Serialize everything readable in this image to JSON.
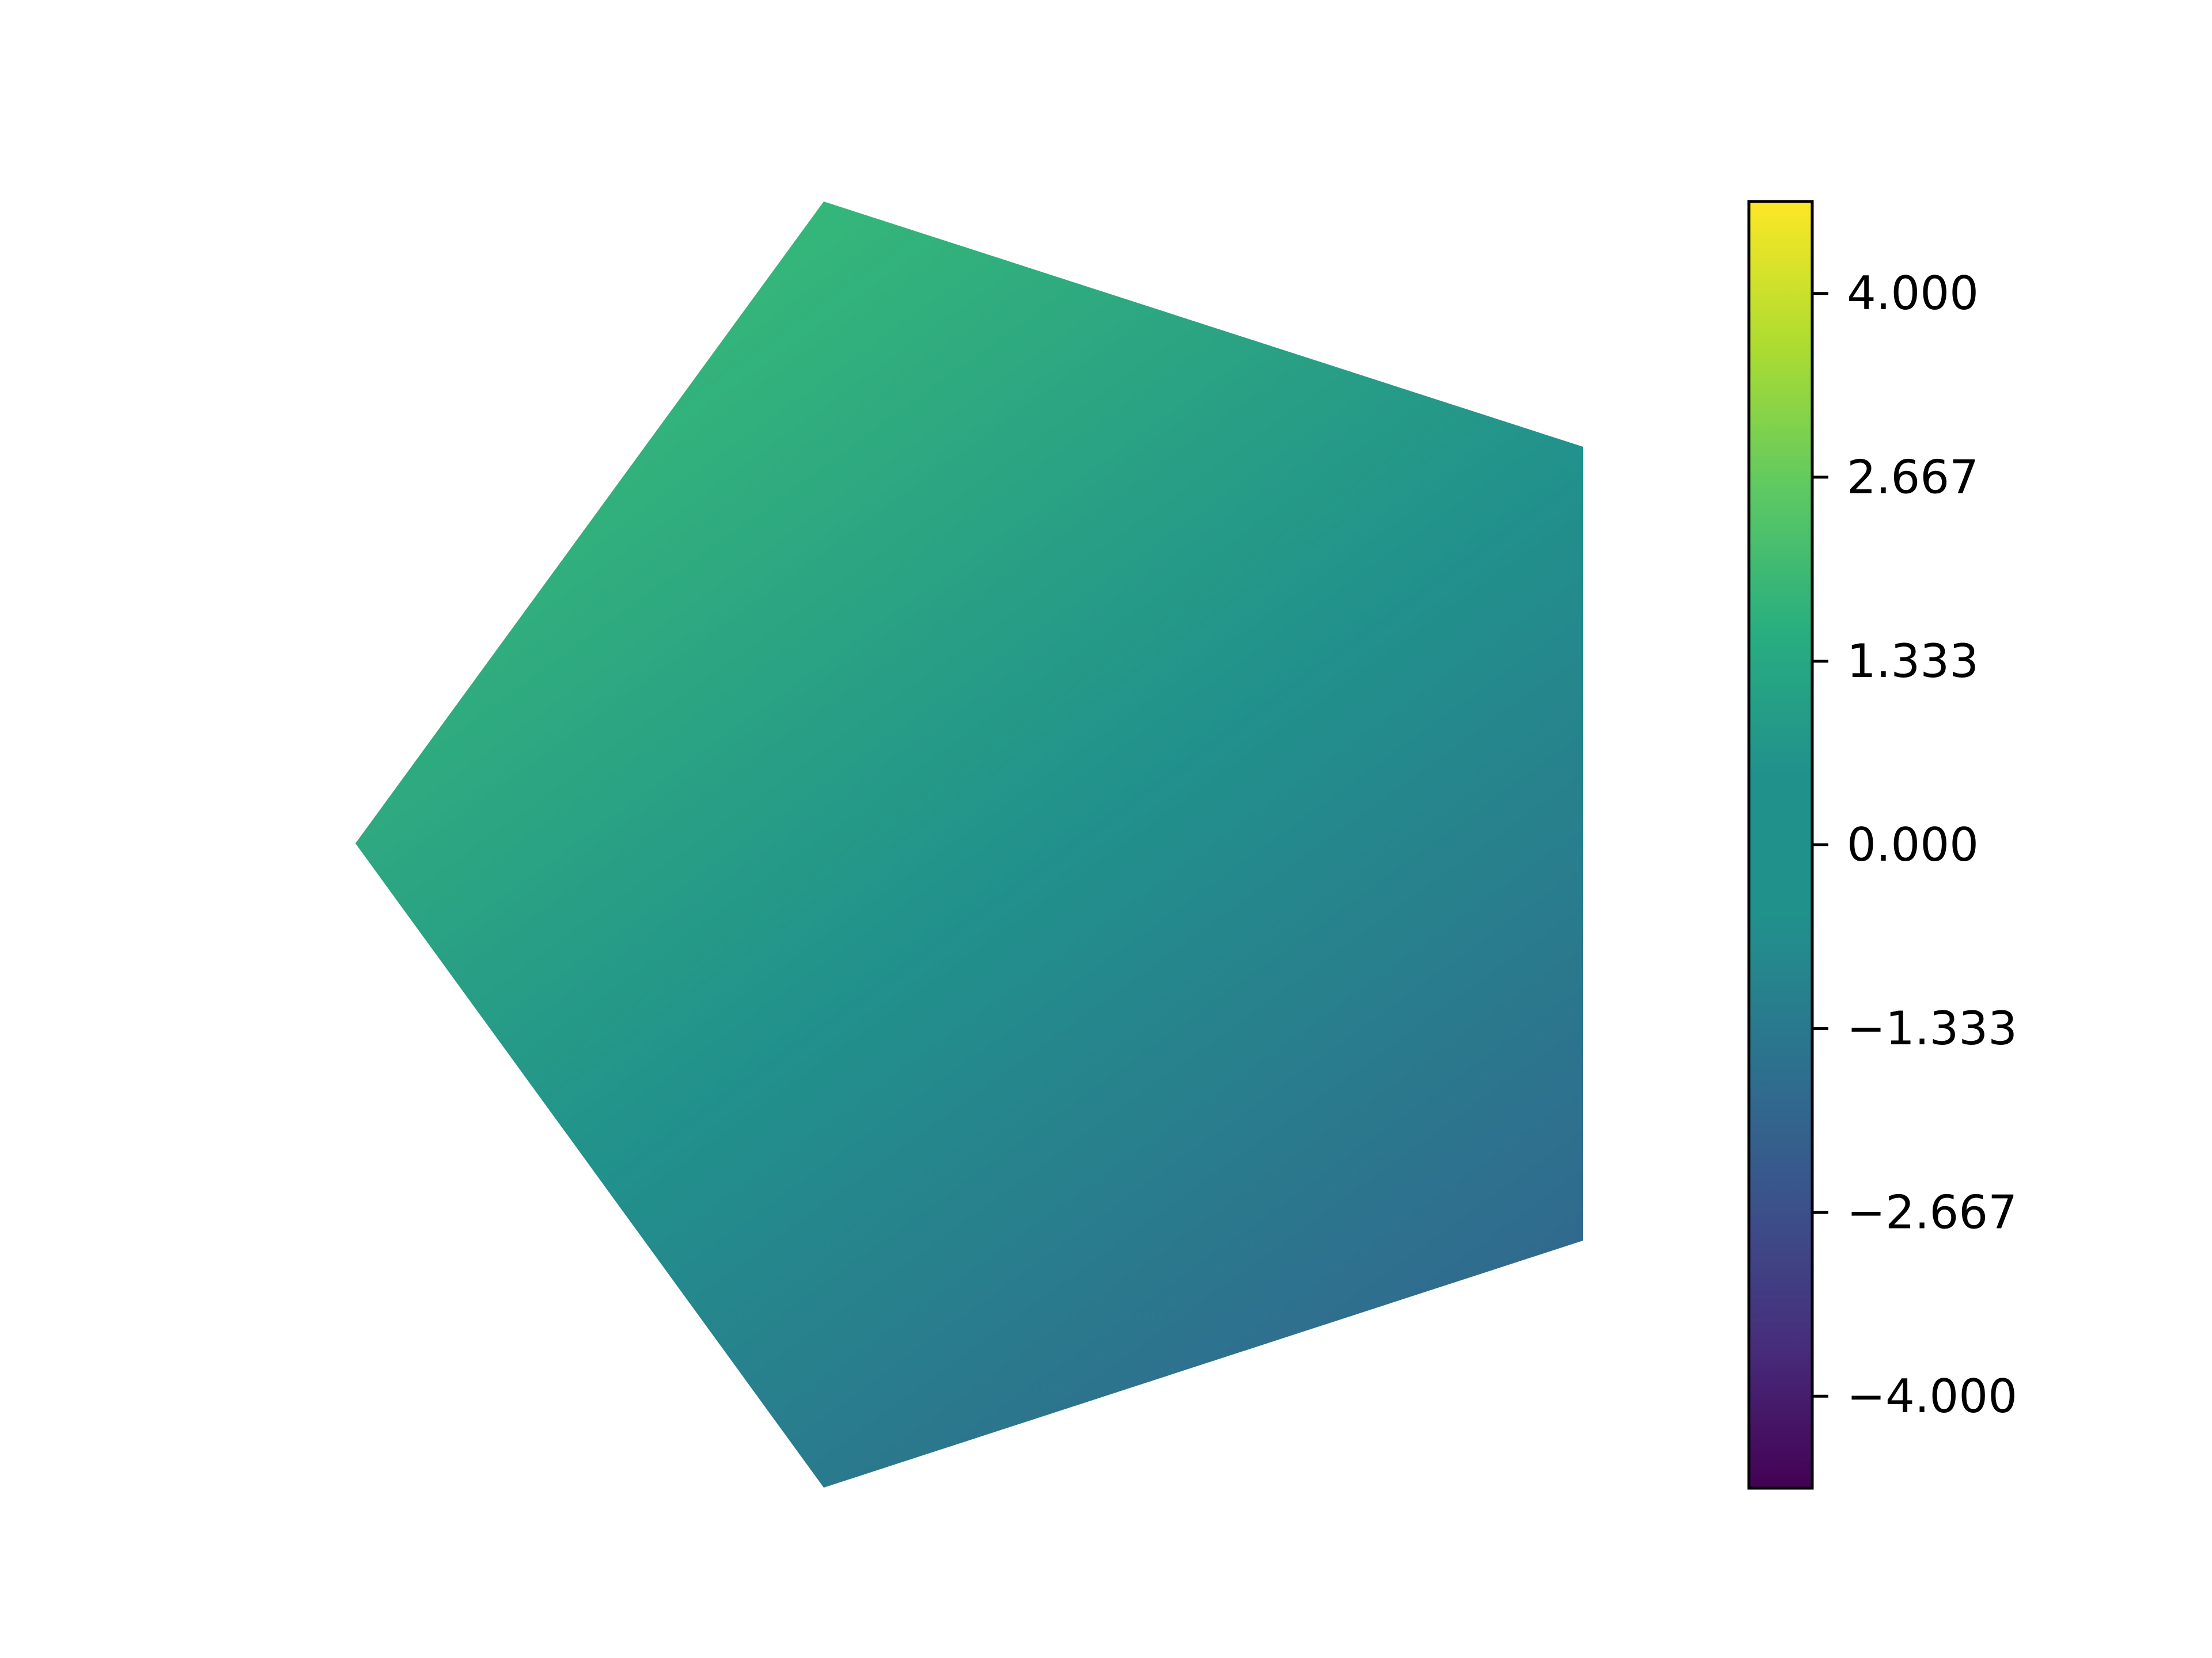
{
  "chart_data": {
    "type": "heatmap",
    "shape": "regular pentagon",
    "colormap": "viridis",
    "colorbar": {
      "vmin": -4.667,
      "vmax": 4.667,
      "ticks": [
        {
          "value": 4.0,
          "label": "4.000"
        },
        {
          "value": 2.667,
          "label": "2.667"
        },
        {
          "value": 1.333,
          "label": "1.333"
        },
        {
          "value": 0.0,
          "label": "0.000"
        },
        {
          "value": -1.333,
          "label": "−1.333"
        },
        {
          "value": -2.667,
          "label": "−2.667"
        },
        {
          "value": -4.0,
          "label": "−4.000"
        }
      ]
    },
    "field_gradient": {
      "corner_upper_left_value": 2.0,
      "corner_lower_right_value": -2.0,
      "direction": "decreasing toward lower-right"
    },
    "colors": {
      "v_min": "#440154",
      "v_-2.667": "#3f4889",
      "v_-2.0": "#31688e",
      "v_-1.333": "#2f6b8e",
      "v_0.0": "#21918c",
      "v_1.333": "#25ac82",
      "v_2.0": "#35b779",
      "v_2.667": "#5ec962",
      "v_4.0": "#c2df23",
      "v_max": "#fde725"
    },
    "axes_visible": false,
    "grid": false
  }
}
